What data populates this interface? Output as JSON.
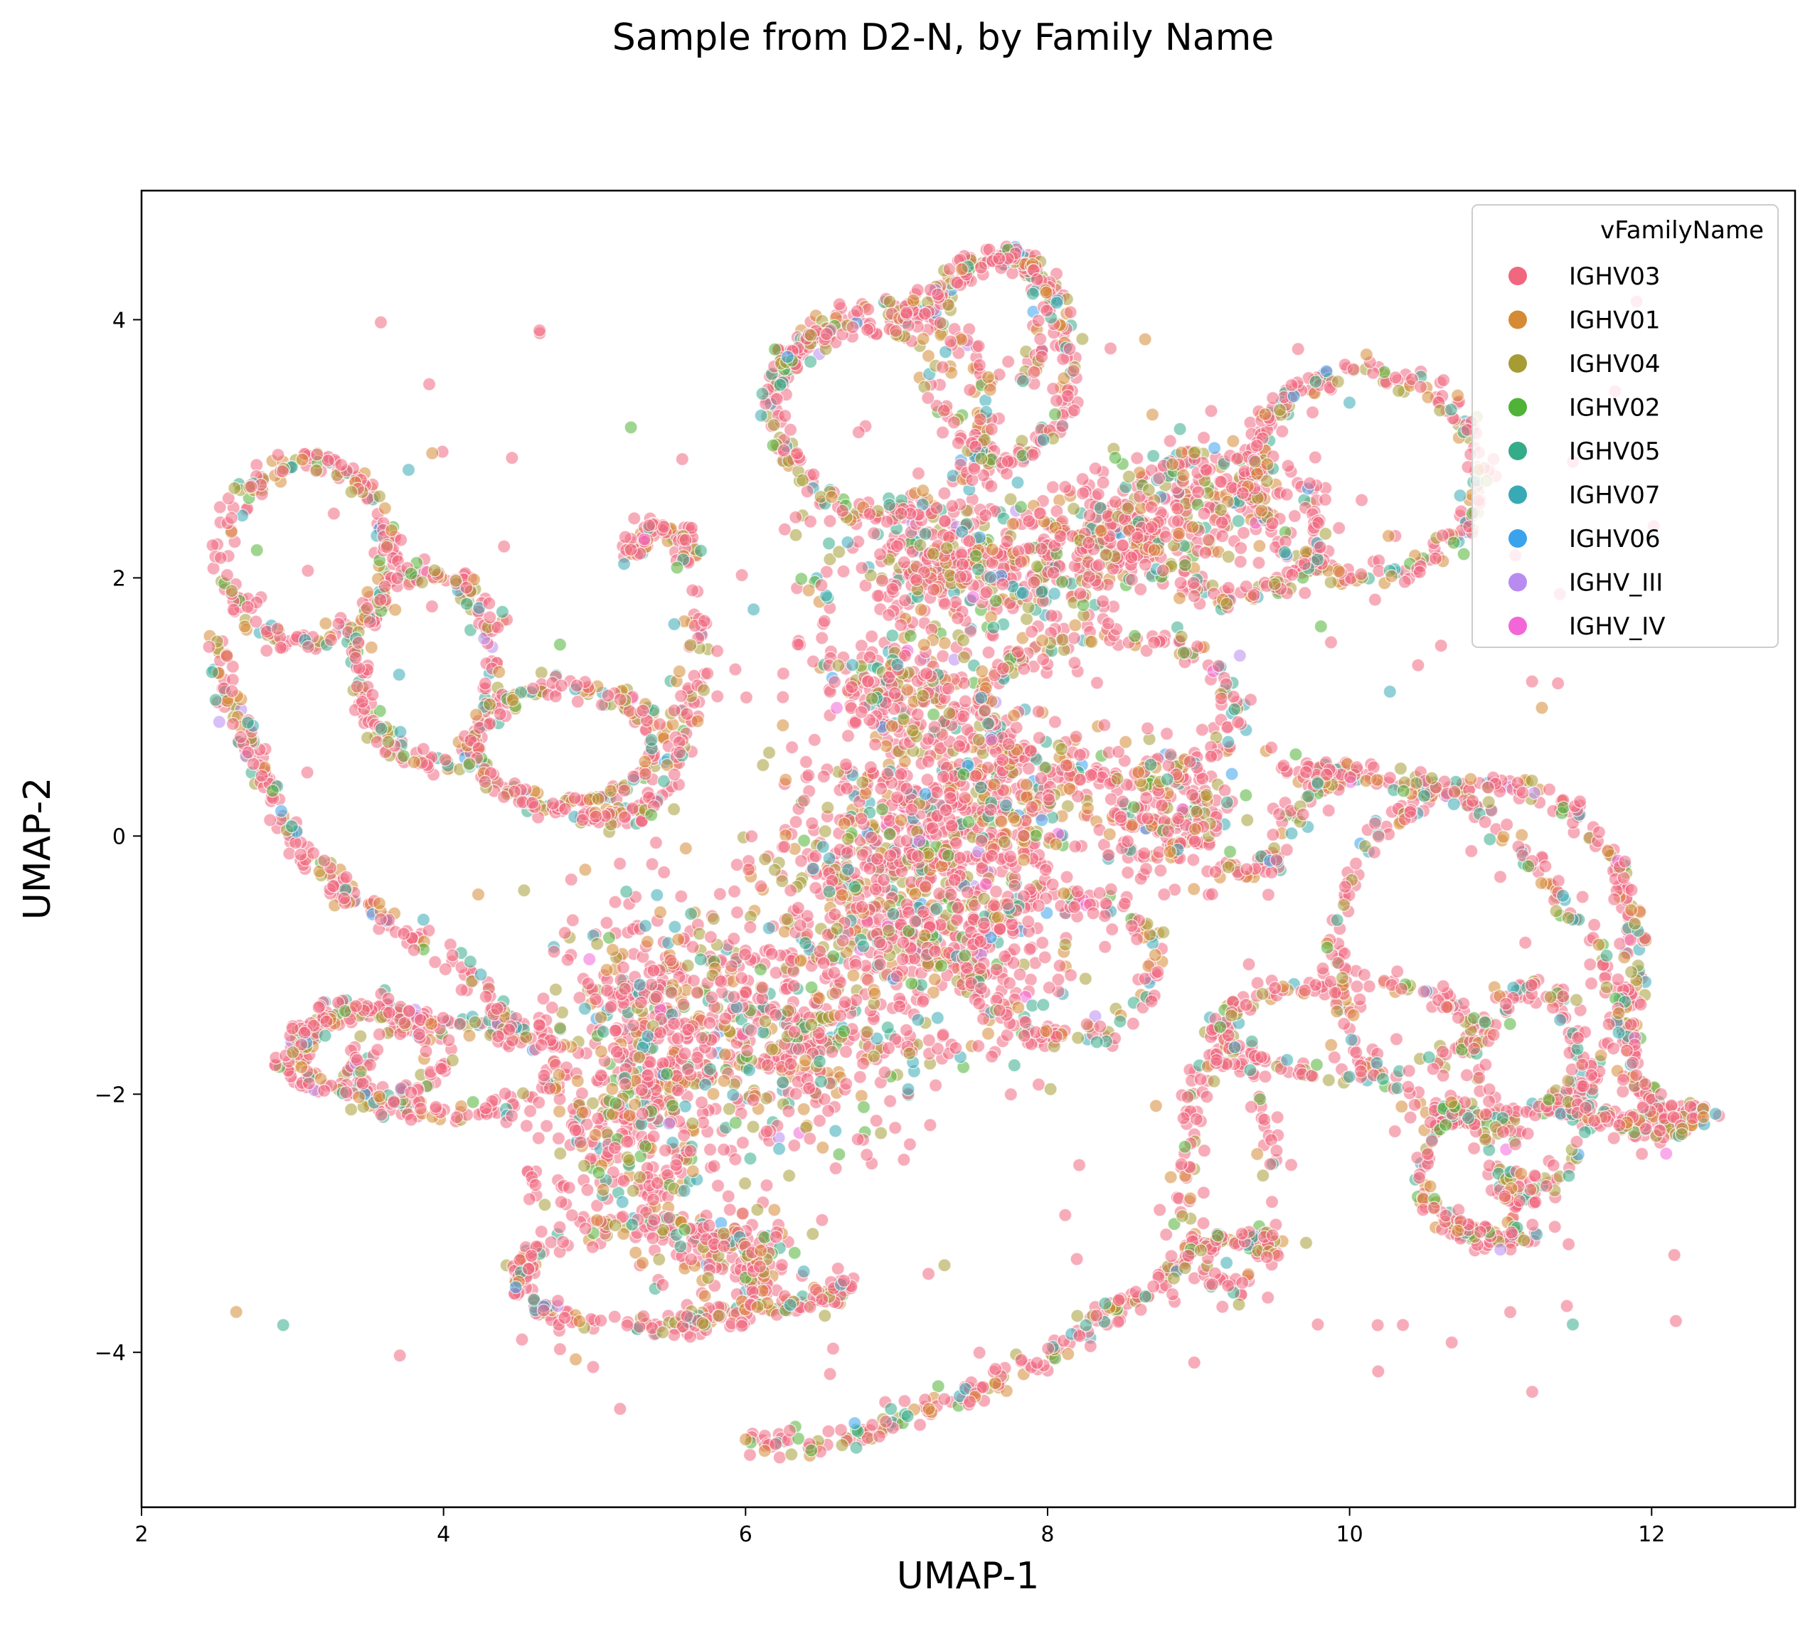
{
  "chart_data": {
    "type": "scatter",
    "title": "Sample from D2-N, by Family Name",
    "xlabel": "UMAP-1",
    "ylabel": "UMAP-2",
    "xlim": [
      2.0,
      12.95
    ],
    "ylim": [
      -5.2,
      5.0
    ],
    "xticks": [
      2,
      4,
      6,
      8,
      10,
      12
    ],
    "yticks": [
      -4,
      -2,
      0,
      2,
      4
    ],
    "xtick_labels": [
      "2",
      "4",
      "6",
      "8",
      "10",
      "12"
    ],
    "ytick_labels": [
      "−4",
      "−2",
      "0",
      "2",
      "4"
    ],
    "grid": false,
    "legend": {
      "title": "vFamilyName",
      "placement": "top-right",
      "entries": [
        {
          "name": "IGHV03",
          "color": "#f0677f"
        },
        {
          "name": "IGHV01",
          "color": "#d58a35"
        },
        {
          "name": "IGHV04",
          "color": "#a69c34"
        },
        {
          "name": "IGHV02",
          "color": "#50b337"
        },
        {
          "name": "IGHV05",
          "color": "#34ac8a"
        },
        {
          "name": "IGHV07",
          "color": "#37aab5"
        },
        {
          "name": "IGHV06",
          "color": "#3ba3ec"
        },
        {
          "name": "IGHV_III",
          "color": "#b88bf1"
        },
        {
          "name": "IGHV_IV",
          "color": "#f366d8"
        }
      ]
    },
    "marker_alpha": 0.55,
    "series_weights": [
      0.62,
      0.12,
      0.11,
      0.04,
      0.05,
      0.04,
      0.01,
      0.005,
      0.005
    ],
    "structures": {
      "blobs": [
        {
          "cx": 7.1,
          "cy": -0.5,
          "rx": 0.9,
          "ry": 1.1,
          "n": 900
        },
        {
          "cx": 7.6,
          "cy": 0.4,
          "rx": 0.7,
          "ry": 0.8,
          "n": 350
        },
        {
          "cx": 7.5,
          "cy": 2.1,
          "rx": 0.9,
          "ry": 0.55,
          "n": 450
        },
        {
          "cx": 6.3,
          "cy": -1.6,
          "rx": 0.7,
          "ry": 0.7,
          "n": 350
        },
        {
          "cx": 5.4,
          "cy": -1.5,
          "rx": 0.55,
          "ry": 0.9,
          "n": 380
        },
        {
          "cx": 5.2,
          "cy": -2.4,
          "rx": 0.6,
          "ry": 0.6,
          "n": 220
        },
        {
          "cx": 8.8,
          "cy": 0.2,
          "rx": 0.4,
          "ry": 0.45,
          "n": 200
        },
        {
          "cx": 8.4,
          "cy": 2.3,
          "rx": 0.45,
          "ry": 0.4,
          "n": 160
        },
        {
          "cx": 9.0,
          "cy": 2.5,
          "rx": 0.6,
          "ry": 0.5,
          "n": 200
        },
        {
          "cx": 5.9,
          "cy": -3.2,
          "rx": 0.5,
          "ry": 0.3,
          "n": 120
        },
        {
          "cx": 7.0,
          "cy": 1.2,
          "rx": 0.5,
          "ry": 0.4,
          "n": 180
        }
      ],
      "loops": [
        {
          "cx": 3.1,
          "cy": 2.2,
          "rx": 0.55,
          "ry": 0.7,
          "n": 220
        },
        {
          "cx": 3.9,
          "cy": 1.3,
          "rx": 0.45,
          "ry": 0.75,
          "n": 200
        },
        {
          "cx": 4.8,
          "cy": 0.7,
          "rx": 0.6,
          "ry": 0.45,
          "n": 200
        },
        {
          "cx": 6.9,
          "cy": 3.3,
          "rx": 0.7,
          "ry": 0.8,
          "n": 240
        },
        {
          "cx": 7.7,
          "cy": 3.7,
          "rx": 0.45,
          "ry": 0.8,
          "n": 180
        },
        {
          "cx": 10.1,
          "cy": 2.8,
          "rx": 0.75,
          "ry": 0.8,
          "n": 260
        },
        {
          "cx": 9.2,
          "cy": 2.4,
          "rx": 0.6,
          "ry": 0.55,
          "n": 160
        },
        {
          "cx": 10.9,
          "cy": -0.9,
          "rx": 1.0,
          "ry": 1.3,
          "n": 330
        },
        {
          "cx": 10.0,
          "cy": -1.5,
          "rx": 0.85,
          "ry": 0.35,
          "n": 180
        },
        {
          "cx": 8.4,
          "cy": 1.0,
          "rx": 0.85,
          "ry": 0.55,
          "n": 200
        },
        {
          "cx": 8.1,
          "cy": -1.0,
          "rx": 0.6,
          "ry": 0.55,
          "n": 160
        },
        {
          "cx": 4.1,
          "cy": -1.8,
          "rx": 0.7,
          "ry": 0.35,
          "n": 160
        },
        {
          "cx": 3.5,
          "cy": -1.7,
          "rx": 0.5,
          "ry": 0.35,
          "n": 130
        },
        {
          "cx": 5.3,
          "cy": -3.4,
          "rx": 0.8,
          "ry": 0.4,
          "n": 220
        },
        {
          "cx": 11.2,
          "cy": -2.0,
          "rx": 0.35,
          "ry": 0.8,
          "n": 150
        },
        {
          "cx": 9.2,
          "cy": -2.6,
          "rx": 0.3,
          "ry": 0.9,
          "n": 130
        },
        {
          "cx": 10.8,
          "cy": -2.6,
          "rx": 0.3,
          "ry": 0.5,
          "n": 100
        }
      ],
      "paths": [
        {
          "pts": [
            [
              2.5,
              1.6
            ],
            [
              2.6,
              1.0
            ],
            [
              2.8,
              0.5
            ],
            [
              3.0,
              0.0
            ],
            [
              3.3,
              -0.4
            ],
            [
              3.7,
              -0.7
            ],
            [
              4.1,
              -1.0
            ],
            [
              4.4,
              -1.4
            ],
            [
              4.5,
              -1.6
            ]
          ],
          "n": 220
        },
        {
          "pts": [
            [
              2.9,
              -1.8
            ],
            [
              3.2,
              -1.4
            ],
            [
              3.6,
              -1.3
            ],
            [
              4.0,
              -1.5
            ]
          ],
          "n": 90
        },
        {
          "pts": [
            [
              5.2,
              2.2
            ],
            [
              5.4,
              2.4
            ],
            [
              5.6,
              2.3
            ],
            [
              5.7,
              1.6
            ],
            [
              5.6,
              0.9
            ],
            [
              5.5,
              0.4
            ],
            [
              5.2,
              0.1
            ],
            [
              4.9,
              0.2
            ]
          ],
          "n": 200
        },
        {
          "pts": [
            [
              5.5,
              -3.8
            ],
            [
              6.0,
              -3.7
            ],
            [
              6.4,
              -3.6
            ],
            [
              6.7,
              -3.5
            ]
          ],
          "n": 90
        },
        {
          "pts": [
            [
              6.0,
              -4.7
            ],
            [
              6.6,
              -4.7
            ],
            [
              7.0,
              -4.5
            ],
            [
              7.5,
              -4.3
            ],
            [
              7.9,
              -4.1
            ],
            [
              8.3,
              -3.8
            ],
            [
              8.7,
              -3.5
            ],
            [
              9.0,
              -3.2
            ],
            [
              9.3,
              -3.1
            ],
            [
              9.5,
              -3.2
            ]
          ],
          "n": 260
        },
        {
          "pts": [
            [
              6.2,
              3.6
            ],
            [
              6.5,
              3.9
            ],
            [
              7.0,
              3.9
            ],
            [
              7.4,
              4.4
            ],
            [
              7.8,
              4.5
            ],
            [
              8.0,
              4.2
            ],
            [
              7.9,
              3.5
            ]
          ],
          "n": 180
        },
        {
          "pts": [
            [
              9.6,
              0.5
            ],
            [
              10.0,
              0.5
            ],
            [
              10.5,
              0.4
            ],
            [
              10.9,
              0.2
            ],
            [
              11.3,
              -0.3
            ],
            [
              11.6,
              -0.8
            ],
            [
              11.8,
              -1.4
            ],
            [
              11.9,
              -1.9
            ],
            [
              12.1,
              -2.2
            ],
            [
              12.3,
              -2.1
            ]
          ],
          "n": 240
        },
        {
          "pts": [
            [
              9.2,
              -0.3
            ],
            [
              9.5,
              -0.2
            ],
            [
              9.7,
              0.3
            ],
            [
              9.9,
              0.5
            ]
          ],
          "n": 70
        },
        {
          "pts": [
            [
              11.4,
              -2.1
            ],
            [
              11.8,
              -2.2
            ],
            [
              12.1,
              -2.3
            ],
            [
              12.4,
              -2.1
            ]
          ],
          "n": 100
        },
        {
          "pts": [
            [
              10.6,
              -2.9
            ],
            [
              10.8,
              -3.1
            ],
            [
              11.0,
              -3.1
            ],
            [
              11.2,
              -3.1
            ]
          ],
          "n": 70
        }
      ],
      "scatter_noise": 160
    }
  }
}
